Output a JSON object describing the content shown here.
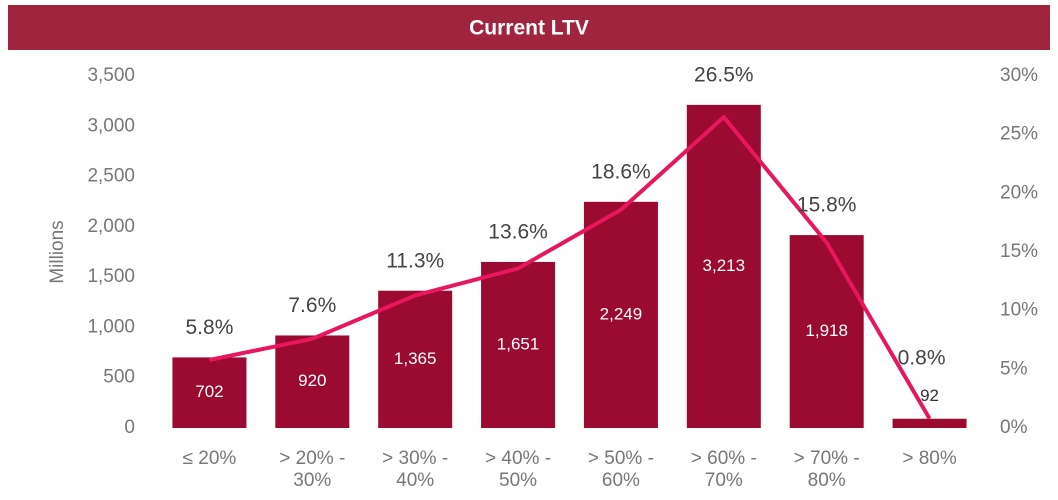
{
  "chart_data": {
    "type": "bar",
    "title": "Current LTV",
    "y_label": "Millions",
    "categories": [
      "≤ 20%",
      "> 20% - 30%",
      "> 30% - 40%",
      "> 40% - 50%",
      "> 50% - 60%",
      "> 60% - 70%",
      "> 70% - 80%",
      "> 80%"
    ],
    "series": [
      {
        "type": "bar",
        "color": "#9b0a31",
        "values": [
          702,
          920,
          1365,
          1651,
          2249,
          3213,
          1918,
          92
        ],
        "value_labels": [
          "702",
          "920",
          "1,365",
          "1,651",
          "2,249",
          "3,213",
          "1,918",
          "92"
        ]
      },
      {
        "type": "line",
        "axis": "y2",
        "color": "#e8175d",
        "values": [
          5.8,
          7.6,
          11.3,
          13.6,
          18.6,
          26.5,
          15.8,
          0.8
        ],
        "value_labels": [
          "5.8%",
          "7.6%",
          "11.3%",
          "13.6%",
          "18.6%",
          "26.5%",
          "15.8%",
          "0.8%"
        ]
      }
    ],
    "ylim": [
      0,
      3500
    ],
    "yticks": [
      0,
      {
        "value": 500,
        "label": "500"
      },
      {
        "value": 1000,
        "label": "1,000"
      },
      {
        "value": 1500,
        "label": "1,500"
      },
      {
        "value": 2000,
        "label": "2,000"
      },
      {
        "value": 2500,
        "label": "2,500"
      },
      {
        "value": 3000,
        "label": "3,000"
      },
      {
        "value": 3500,
        "label": "3,500"
      }
    ],
    "y2lim": [
      0,
      30
    ],
    "y2ticks": [
      {
        "value": 0,
        "label": "0%"
      },
      {
        "value": 5,
        "label": "5%"
      },
      {
        "value": 10,
        "label": "10%"
      },
      {
        "value": 15,
        "label": "15%"
      },
      {
        "value": 20,
        "label": "20%"
      },
      {
        "value": 25,
        "label": "25%"
      },
      {
        "value": 30,
        "label": "30%"
      }
    ],
    "grid": false,
    "title_bar_color": "#a1243f"
  }
}
